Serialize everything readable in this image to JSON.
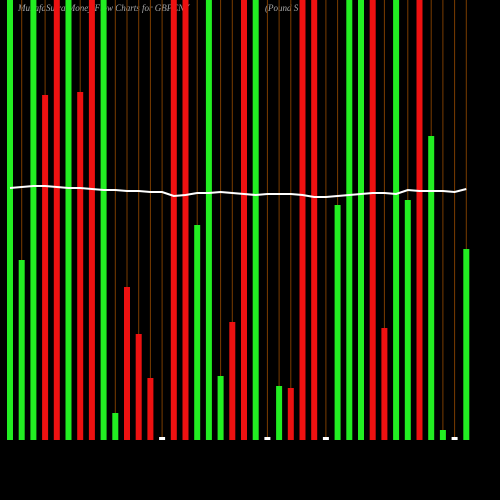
{
  "chart_data": {
    "type": "bar",
    "title": "MunafaSutra Money Flow Charts for GBPCNY",
    "subtitle": "(Pound S",
    "ylim": [
      0,
      440
    ],
    "values": [
      440,
      180,
      440,
      345,
      440,
      440,
      348,
      440,
      440,
      27,
      153,
      106,
      62,
      3,
      440,
      440,
      215,
      440,
      64,
      118,
      440,
      440,
      3,
      54,
      52,
      440,
      440,
      3,
      235,
      440,
      440,
      440,
      112,
      440,
      240,
      440,
      304,
      10,
      3,
      191
    ],
    "colors": [
      "#22ee22",
      "#22ee22",
      "#22ee22",
      "#ee1111",
      "#ee1111",
      "#22ee22",
      "#ee1111",
      "#ee1111",
      "#22ee22",
      "#22ee22",
      "#ee1111",
      "#ee1111",
      "#ee1111",
      "#ffffff",
      "#ee1111",
      "#ee1111",
      "#22ee22",
      "#22ee22",
      "#22ee22",
      "#ee1111",
      "#ee1111",
      "#22ee22",
      "#ffffff",
      "#22ee22",
      "#ee1111",
      "#ee1111",
      "#ee1111",
      "#ffffff",
      "#22ee22",
      "#22ee22",
      "#22ee22",
      "#ee1111",
      "#ee1111",
      "#22ee22",
      "#22ee22",
      "#ee1111",
      "#22ee22",
      "#22ee22",
      "#ffffff",
      "#22ee22"
    ],
    "line": {
      "color": "#ffffff",
      "values": [
        252,
        253,
        254,
        254,
        253,
        252,
        252,
        251,
        250,
        250,
        249,
        249,
        248,
        248,
        244,
        245,
        247,
        247,
        248,
        247,
        246,
        245,
        246,
        246,
        246,
        245,
        243,
        243,
        244,
        245,
        246,
        247,
        247,
        246,
        250,
        249,
        249,
        249,
        248,
        251
      ]
    }
  }
}
